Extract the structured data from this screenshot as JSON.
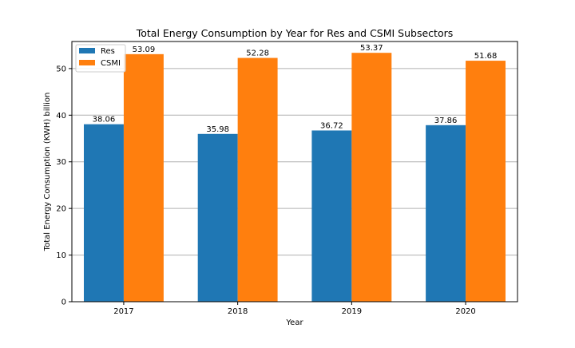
{
  "chart_data": {
    "type": "bar",
    "title": "Total Energy Consumption by Year for Res and CSMI Subsectors",
    "xlabel": "Year",
    "ylabel": "Total Energy Consumption (KWH) billion",
    "categories": [
      "2017",
      "2018",
      "2019",
      "2020"
    ],
    "series": [
      {
        "name": "Res",
        "color": "#1f77b4",
        "values": [
          38.06,
          35.98,
          36.72,
          37.86
        ],
        "labels": [
          "38.06",
          "35.98",
          "36.72",
          "37.86"
        ]
      },
      {
        "name": "CSMI",
        "color": "#ff7f0e",
        "values": [
          53.09,
          52.28,
          53.37,
          51.68
        ],
        "labels": [
          "53.09",
          "52.28",
          "53.37",
          "51.68"
        ]
      }
    ],
    "ylim": [
      0,
      55.8
    ],
    "yticks": [
      0,
      10,
      20,
      30,
      40,
      50
    ],
    "ytick_labels": [
      "0",
      "10",
      "20",
      "30",
      "40",
      "50"
    ],
    "grid": "horizontal",
    "legend_position": "upper-left"
  }
}
